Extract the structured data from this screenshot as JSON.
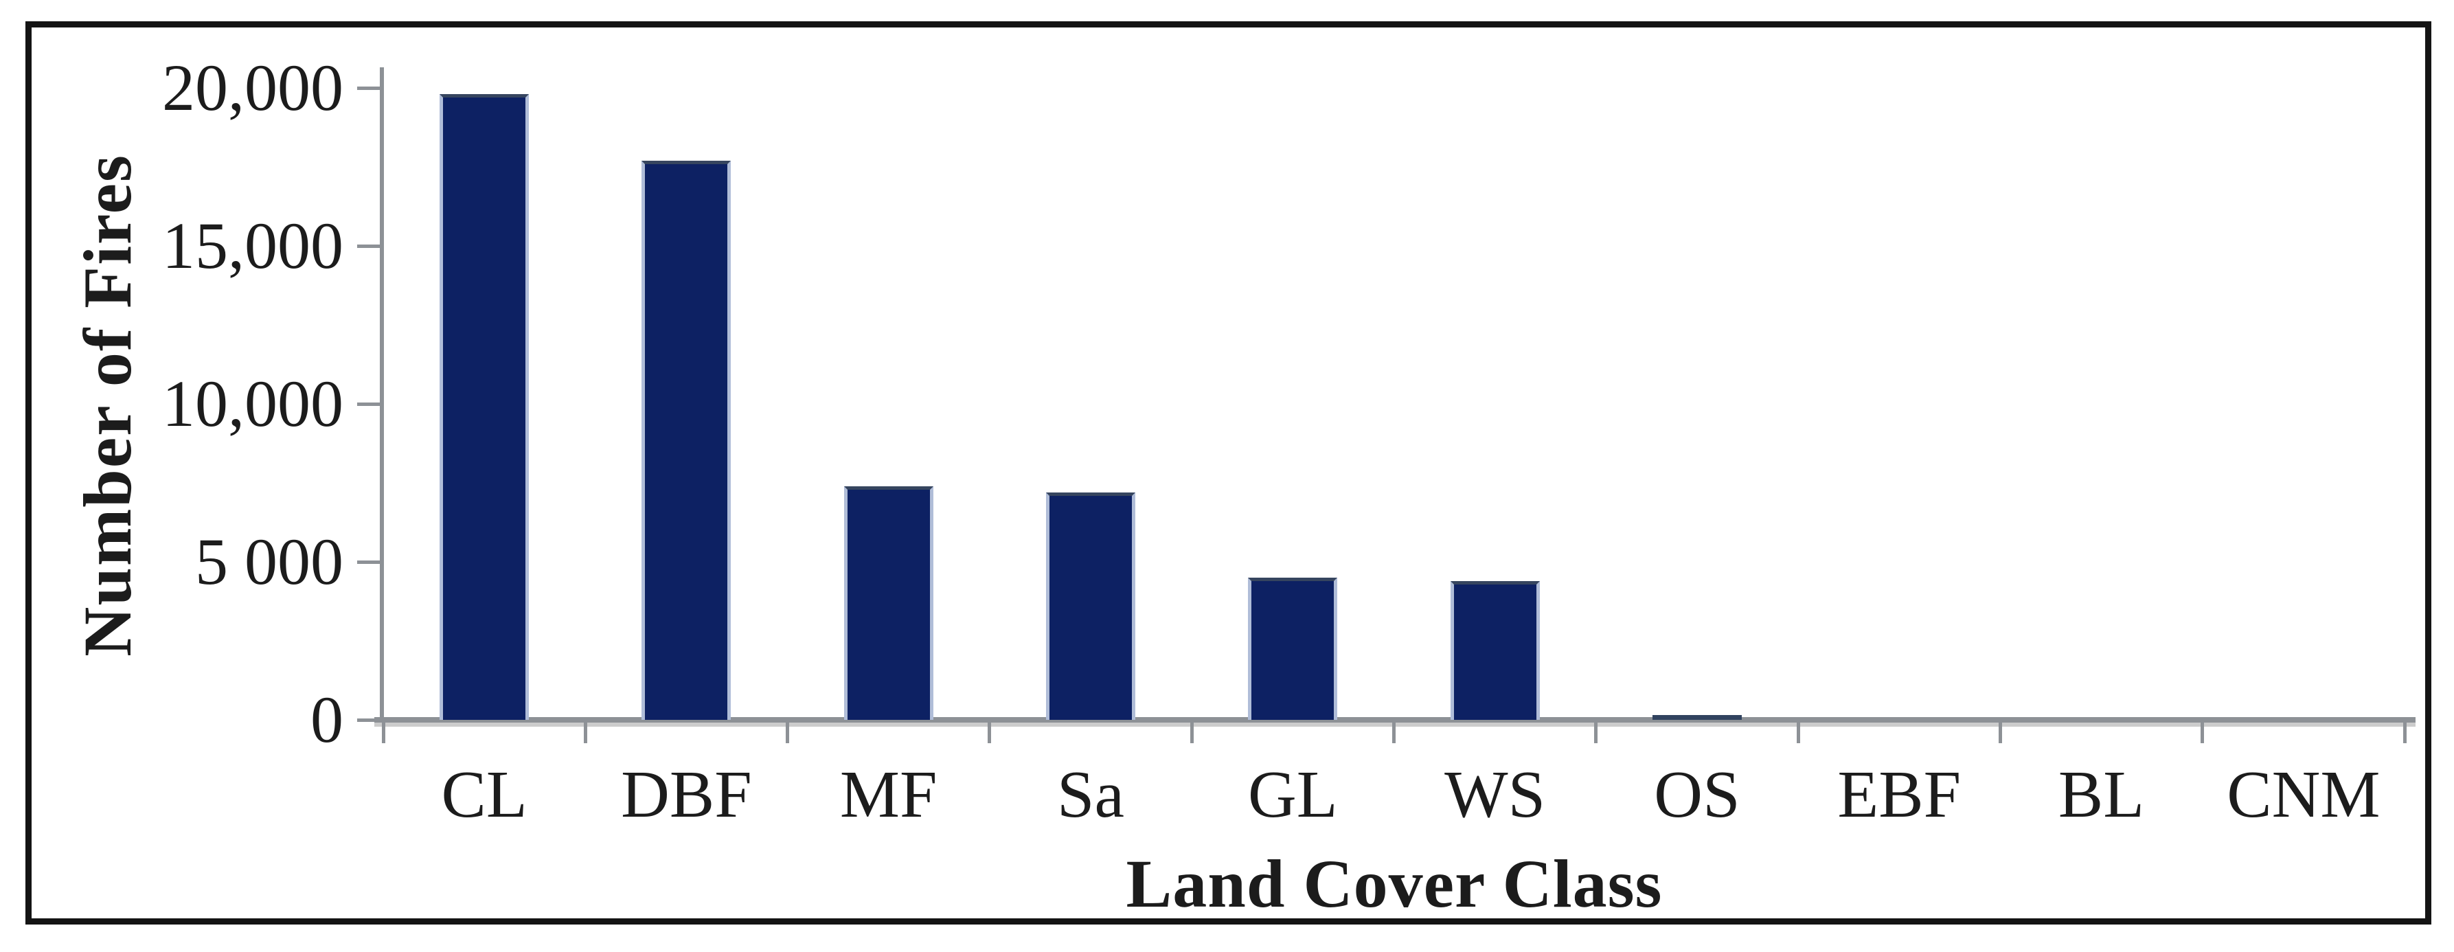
{
  "chart_data": {
    "type": "bar",
    "title": "",
    "categories": [
      "CL",
      "DBF",
      "MF",
      "Sa",
      "GL",
      "WS",
      "OS",
      "EBF",
      "BL",
      "CNM"
    ],
    "values": [
      19800,
      17700,
      7400,
      7200,
      4500,
      4400,
      150,
      0,
      0,
      0
    ],
    "xlabel": "Land Cover Class",
    "ylabel": "Number of Fires",
    "ylim": [
      0,
      20000
    ],
    "yticks": [
      {
        "value": 0,
        "label": "0"
      },
      {
        "value": 5000,
        "label": "5 000"
      },
      {
        "value": 10000,
        "label": "10,000"
      },
      {
        "value": 15000,
        "label": "15,000"
      },
      {
        "value": 20000,
        "label": "20,000"
      }
    ],
    "grid": false,
    "legend": null,
    "colors": {
      "bar_fill": "#0d2163",
      "bar_edge": "#b0bdd8",
      "axis": "#8d9196",
      "frame": "#141414",
      "text": "#1c1c1c"
    }
  }
}
